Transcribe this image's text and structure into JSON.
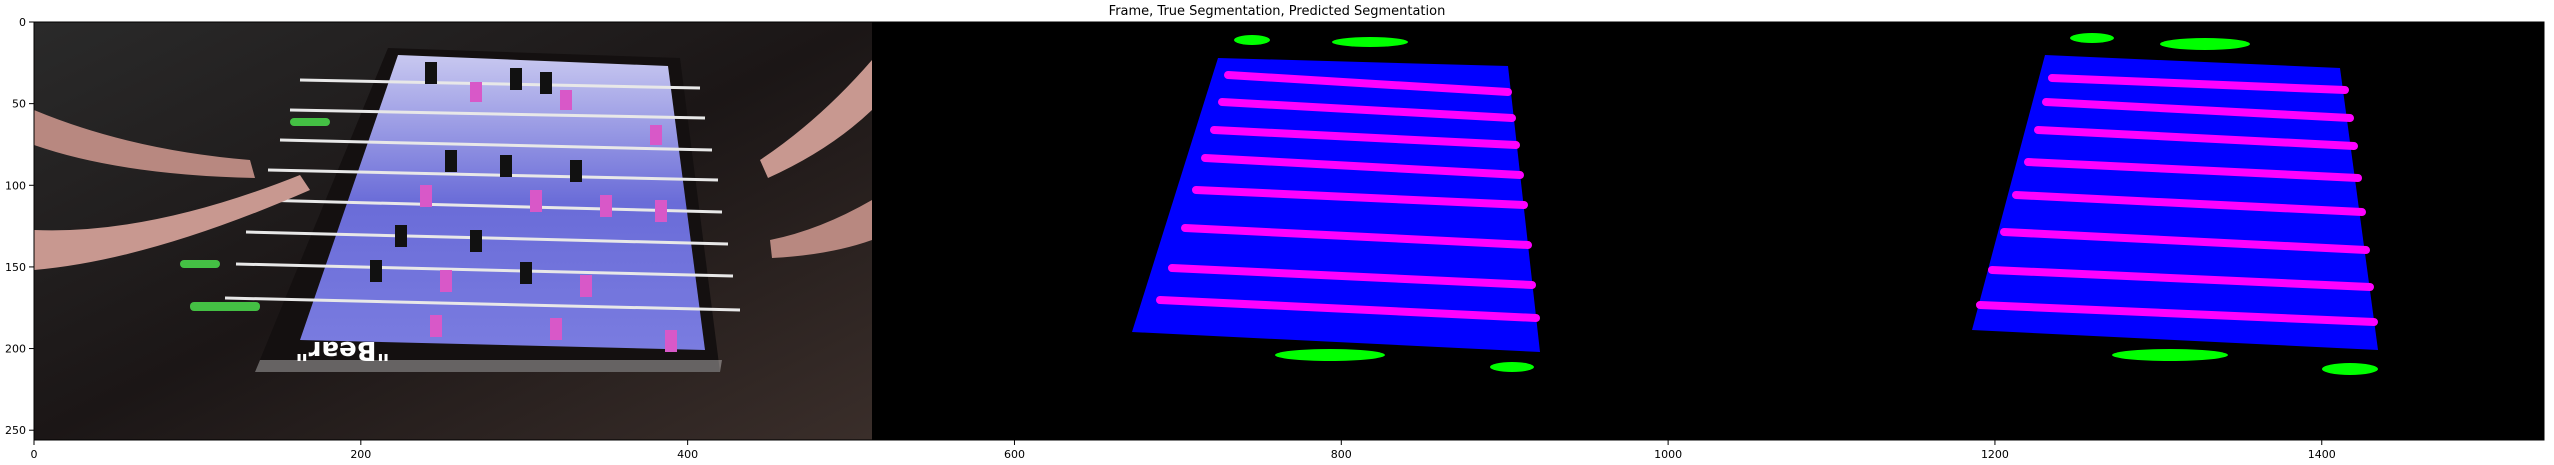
{
  "figure": {
    "title": "Frame, True Segmentation, Predicted Segmentation"
  },
  "axes": {
    "x_ticks": [
      "0",
      "200",
      "400",
      "600",
      "800",
      "1000",
      "1200",
      "1400"
    ],
    "y_ticks": [
      "0",
      "50",
      "100",
      "150",
      "200",
      "250"
    ]
  },
  "panels": [
    {
      "name": "video-frame",
      "caption_text": "\"Bear\""
    },
    {
      "name": "true-segmentation"
    },
    {
      "name": "predicted-segmentation"
    }
  ],
  "colors": {
    "background": "#000000",
    "field": "#0000ff",
    "rods": "#ff00ff",
    "handles": "#00ff00",
    "frame_field": "#6b6ee0",
    "frame_players": "#d858c8"
  }
}
